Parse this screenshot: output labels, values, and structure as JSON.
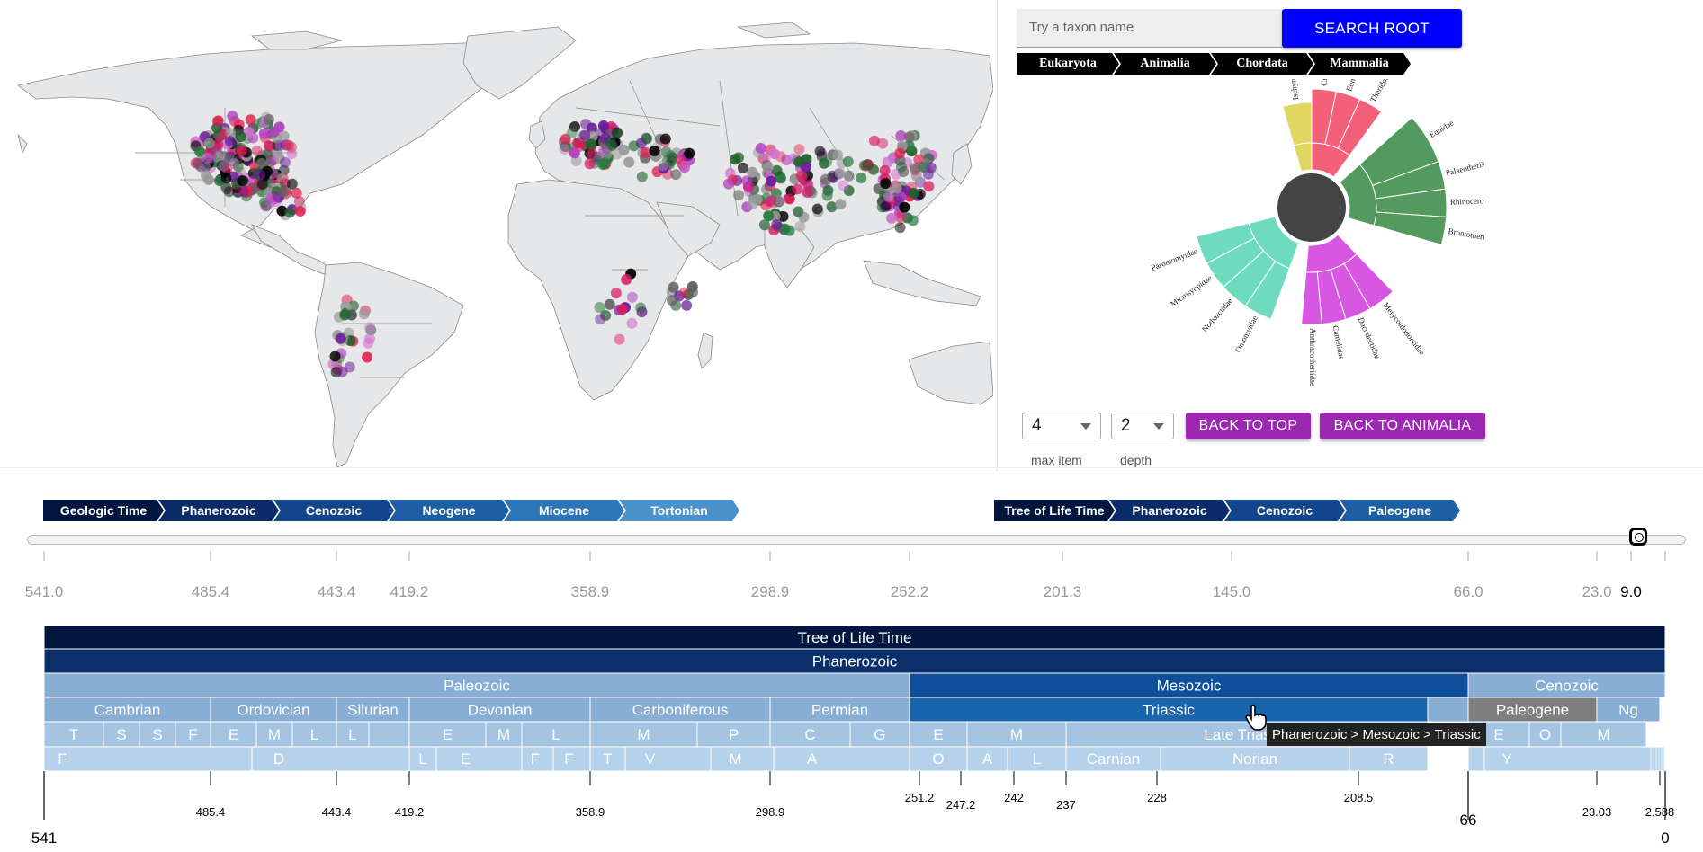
{
  "search": {
    "placeholder": "Try a taxon name",
    "button_label": "SEARCH ROOT"
  },
  "taxon_breadcrumb": [
    "Eukaryota",
    "Animalia",
    "Chordata",
    "Mammalia"
  ],
  "sunburst": {
    "center_color": "#444444",
    "families": [
      {
        "label": "Ischyromyidae",
        "color": "#e0d660"
      },
      {
        "label": "Cricetidae",
        "color": "#f2607a"
      },
      {
        "label": "Eomyidae",
        "color": "#f2607a"
      },
      {
        "label": "Theridomyidae",
        "color": "#f2607a"
      },
      {
        "label": "Equidae",
        "color": "#529a5e"
      },
      {
        "label": "Palaeotheriidae",
        "color": "#529a5e"
      },
      {
        "label": "Rhinocerotidae",
        "color": "#529a5e"
      },
      {
        "label": "Brontotheriidae",
        "color": "#529a5e"
      },
      {
        "label": "Merycoidodontidae",
        "color": "#d857e2"
      },
      {
        "label": "Dacodectidae",
        "color": "#d857e2"
      },
      {
        "label": "Camelidae",
        "color": "#d857e2"
      },
      {
        "label": "Anthracotheriidae",
        "color": "#d857e2"
      },
      {
        "label": "Omomyidae",
        "color": "#6fdbbe"
      },
      {
        "label": "Notharctidae",
        "color": "#6fdbbe"
      },
      {
        "label": "Microsyopidae",
        "color": "#6fdbbe"
      },
      {
        "label": "Paromomyidae",
        "color": "#6fdbbe"
      }
    ]
  },
  "controls": {
    "max_item": {
      "value": "4",
      "label": "max item"
    },
    "depth": {
      "value": "2",
      "label": "depth"
    },
    "back_to_top": "BACK TO TOP",
    "back_to_animalia": "BACK TO ANIMALIA"
  },
  "geologic_breadcrumb": [
    {
      "label": "Geologic Time",
      "color": "#02163f"
    },
    {
      "label": "Phanerozoic",
      "color": "#0b2c68"
    },
    {
      "label": "Cenozoic",
      "color": "#12458a"
    },
    {
      "label": "Neogene",
      "color": "#1c5fa5"
    },
    {
      "label": "Miocene",
      "color": "#2c76b8"
    },
    {
      "label": "Tortonian",
      "color": "#4a92c9"
    }
  ],
  "tree_of_life_breadcrumb": [
    {
      "label": "Tree of Life Time",
      "color": "#02163f"
    },
    {
      "label": "Phanerozoic",
      "color": "#0b2c68"
    },
    {
      "label": "Cenozoic",
      "color": "#12458a"
    },
    {
      "label": "Paleogene",
      "color": "#1c5fa5"
    }
  ],
  "slider_ticks": [
    "541.0",
    "485.4",
    "443.4",
    "419.2",
    "358.9",
    "298.9",
    "252.2",
    "201.3",
    "145.0",
    "66.0",
    "23.0",
    "9.0"
  ],
  "slider_value": "9.0",
  "timescale": {
    "root": "Tree of Life Time",
    "eon": "Phanerozoic",
    "eras": [
      "Paleozoic",
      "Mesozoic",
      "Cenozoic"
    ],
    "periods": [
      "Cambrian",
      "Ordovician",
      "Silurian",
      "Devonian",
      "Carboniferous",
      "Permian",
      "Triassic",
      "Paleogene",
      "Ng"
    ],
    "epochs": [
      "T",
      "S",
      "S",
      "F",
      "E",
      "M",
      "L",
      "L",
      "E",
      "M",
      "L",
      "M",
      "P",
      "C",
      "G",
      "E",
      "M",
      "Late Triassic",
      "E",
      "O",
      "M"
    ],
    "stages": [
      "F",
      "D",
      "L",
      "E",
      "F",
      "F",
      "T",
      "V",
      "M",
      "A",
      "O",
      "A",
      "L",
      "Carnian",
      "Norian",
      "R",
      "Y"
    ],
    "axis_ticks": [
      "485.4",
      "443.4",
      "419.2",
      "358.9",
      "298.9",
      "251.2",
      "247.2",
      "242",
      "237",
      "228",
      "208.5",
      "23.03",
      "2.588"
    ],
    "axis_major": [
      "541",
      "66",
      "0"
    ],
    "colors": {
      "root": "#02163f",
      "eon": "#0a2f6b",
      "paleozoic": "#88aed5",
      "mesozoic": "#0d4f9a",
      "triassic": "#1a63ad",
      "cenozoic": "#88aed5",
      "paleogene_grey": "#7f7f7f",
      "row4": "#a4c4e2",
      "row5": "#b6d1ea"
    }
  },
  "tooltip": "Phanerozoic > Mesozoic > Triassic",
  "map": {
    "land_color": "#e6e7e8",
    "border_color": "#8a8a8a"
  }
}
